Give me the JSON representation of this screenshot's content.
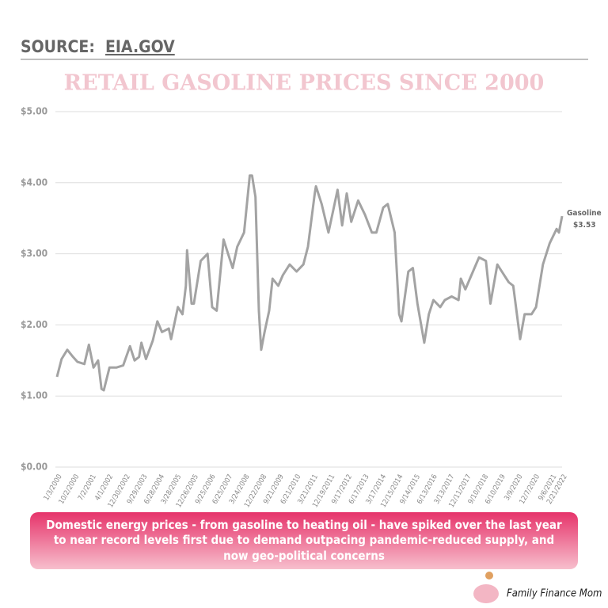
{
  "source_label": "SOURCE:",
  "source_link": "EIA.GOV",
  "chart_data": {
    "type": "line",
    "title": "RETAIL GASOLINE PRICES SINCE 2000",
    "color": "#a3a3a3",
    "grid": true,
    "x": [
      2000.0,
      2000.2,
      2000.45,
      2000.7,
      2000.9,
      2001.2,
      2001.4,
      2001.6,
      2001.8,
      2001.95,
      2002.05,
      2002.3,
      2002.6,
      2002.9,
      2003.2,
      2003.4,
      2003.6,
      2003.7,
      2003.9,
      2004.2,
      2004.4,
      2004.6,
      2004.9,
      2005.0,
      2005.3,
      2005.5,
      2005.65,
      2005.7,
      2005.9,
      2006.0,
      2006.3,
      2006.6,
      2006.8,
      2007.0,
      2007.3,
      2007.5,
      2007.7,
      2007.9,
      2008.2,
      2008.45,
      2008.55,
      2008.7,
      2008.85,
      2008.95,
      2009.1,
      2009.3,
      2009.45,
      2009.7,
      2009.9,
      2010.2,
      2010.5,
      2010.8,
      2011.0,
      2011.3,
      2011.35,
      2011.6,
      2011.9,
      2012.1,
      2012.3,
      2012.5,
      2012.7,
      2012.9,
      2013.2,
      2013.5,
      2013.8,
      2014.0,
      2014.3,
      2014.5,
      2014.8,
      2015.0,
      2015.1,
      2015.4,
      2015.6,
      2015.8,
      2016.1,
      2016.3,
      2016.5,
      2016.8,
      2017.0,
      2017.3,
      2017.6,
      2017.7,
      2017.9,
      2018.3,
      2018.5,
      2018.8,
      2019.0,
      2019.3,
      2019.5,
      2019.8,
      2020.0,
      2020.3,
      2020.5,
      2020.8,
      2021.0,
      2021.3,
      2021.6,
      2021.9,
      2022.0,
      2022.14
    ],
    "values": [
      1.27,
      1.52,
      1.65,
      1.55,
      1.48,
      1.45,
      1.72,
      1.4,
      1.5,
      1.1,
      1.08,
      1.4,
      1.4,
      1.43,
      1.7,
      1.5,
      1.55,
      1.75,
      1.52,
      1.78,
      2.05,
      1.9,
      1.95,
      1.8,
      2.25,
      2.15,
      2.55,
      3.05,
      2.3,
      2.3,
      2.9,
      3.0,
      2.25,
      2.2,
      3.2,
      3.0,
      2.8,
      3.1,
      3.3,
      4.1,
      4.1,
      3.8,
      2.2,
      1.65,
      1.9,
      2.2,
      2.65,
      2.55,
      2.7,
      2.85,
      2.75,
      2.85,
      3.1,
      3.85,
      3.95,
      3.7,
      3.3,
      3.6,
      3.9,
      3.4,
      3.85,
      3.45,
      3.75,
      3.55,
      3.3,
      3.3,
      3.65,
      3.7,
      3.3,
      2.15,
      2.05,
      2.75,
      2.8,
      2.3,
      1.75,
      2.15,
      2.35,
      2.25,
      2.35,
      2.4,
      2.35,
      2.65,
      2.5,
      2.8,
      2.95,
      2.9,
      2.3,
      2.85,
      2.75,
      2.6,
      2.55,
      1.8,
      2.15,
      2.15,
      2.25,
      2.85,
      3.15,
      3.35,
      3.3,
      3.53
    ],
    "xlim": [
      2000.0,
      2022.14
    ],
    "xticks": [
      {
        "value": 2000.0,
        "label": "1/3/2000"
      },
      {
        "value": 2000.75,
        "label": "10/2/2000"
      },
      {
        "value": 2001.5,
        "label": "7/2/2001"
      },
      {
        "value": 2002.24,
        "label": "4/1/2002"
      },
      {
        "value": 2002.99,
        "label": "12/30/2002"
      },
      {
        "value": 2003.74,
        "label": "9/29/2003"
      },
      {
        "value": 2004.49,
        "label": "6/28/2004"
      },
      {
        "value": 2005.23,
        "label": "3/28/2005"
      },
      {
        "value": 2005.98,
        "label": "12/26/2005"
      },
      {
        "value": 2006.73,
        "label": "9/25/2006"
      },
      {
        "value": 2007.48,
        "label": "6/25/2007"
      },
      {
        "value": 2008.22,
        "label": "3/24/2008"
      },
      {
        "value": 2008.97,
        "label": "12/22/2008"
      },
      {
        "value": 2009.72,
        "label": "9/21/2009"
      },
      {
        "value": 2010.47,
        "label": "6/21/2010"
      },
      {
        "value": 2011.22,
        "label": "3/21/2011"
      },
      {
        "value": 2011.96,
        "label": "12/19/2011"
      },
      {
        "value": 2012.71,
        "label": "9/17/2012"
      },
      {
        "value": 2013.46,
        "label": "6/17/2013"
      },
      {
        "value": 2014.21,
        "label": "3/17/2014"
      },
      {
        "value": 2014.95,
        "label": "12/15/2014"
      },
      {
        "value": 2015.7,
        "label": "9/14/2015"
      },
      {
        "value": 2016.45,
        "label": "6/13/2016"
      },
      {
        "value": 2017.2,
        "label": "3/13/2017"
      },
      {
        "value": 2017.94,
        "label": "12/11/2017"
      },
      {
        "value": 2018.69,
        "label": "9/10/2018"
      },
      {
        "value": 2019.44,
        "label": "6/10/2019"
      },
      {
        "value": 2020.19,
        "label": "3/9/2020"
      },
      {
        "value": 2020.94,
        "label": "12/7/2020"
      },
      {
        "value": 2021.68,
        "label": "9/6/2021"
      },
      {
        "value": 2022.14,
        "label": "2/21/2022"
      }
    ],
    "ylim": [
      0,
      5
    ],
    "yticks": [
      {
        "value": 0,
        "label": "$0.00"
      },
      {
        "value": 1,
        "label": "$1.00"
      },
      {
        "value": 2,
        "label": "$2.00"
      },
      {
        "value": 3,
        "label": "$3.00"
      },
      {
        "value": 4,
        "label": "$4.00"
      },
      {
        "value": 5,
        "label": "$5.00"
      }
    ],
    "series_label": "Gasoline",
    "end_value_label": "$3.53"
  },
  "caption": "Domestic energy prices - from gasoline to heating oil - have spiked over the last year to near record levels first due to demand outpacing pandemic-reduced supply, and now geo-political concerns",
  "brand": "Family Finance Mom"
}
